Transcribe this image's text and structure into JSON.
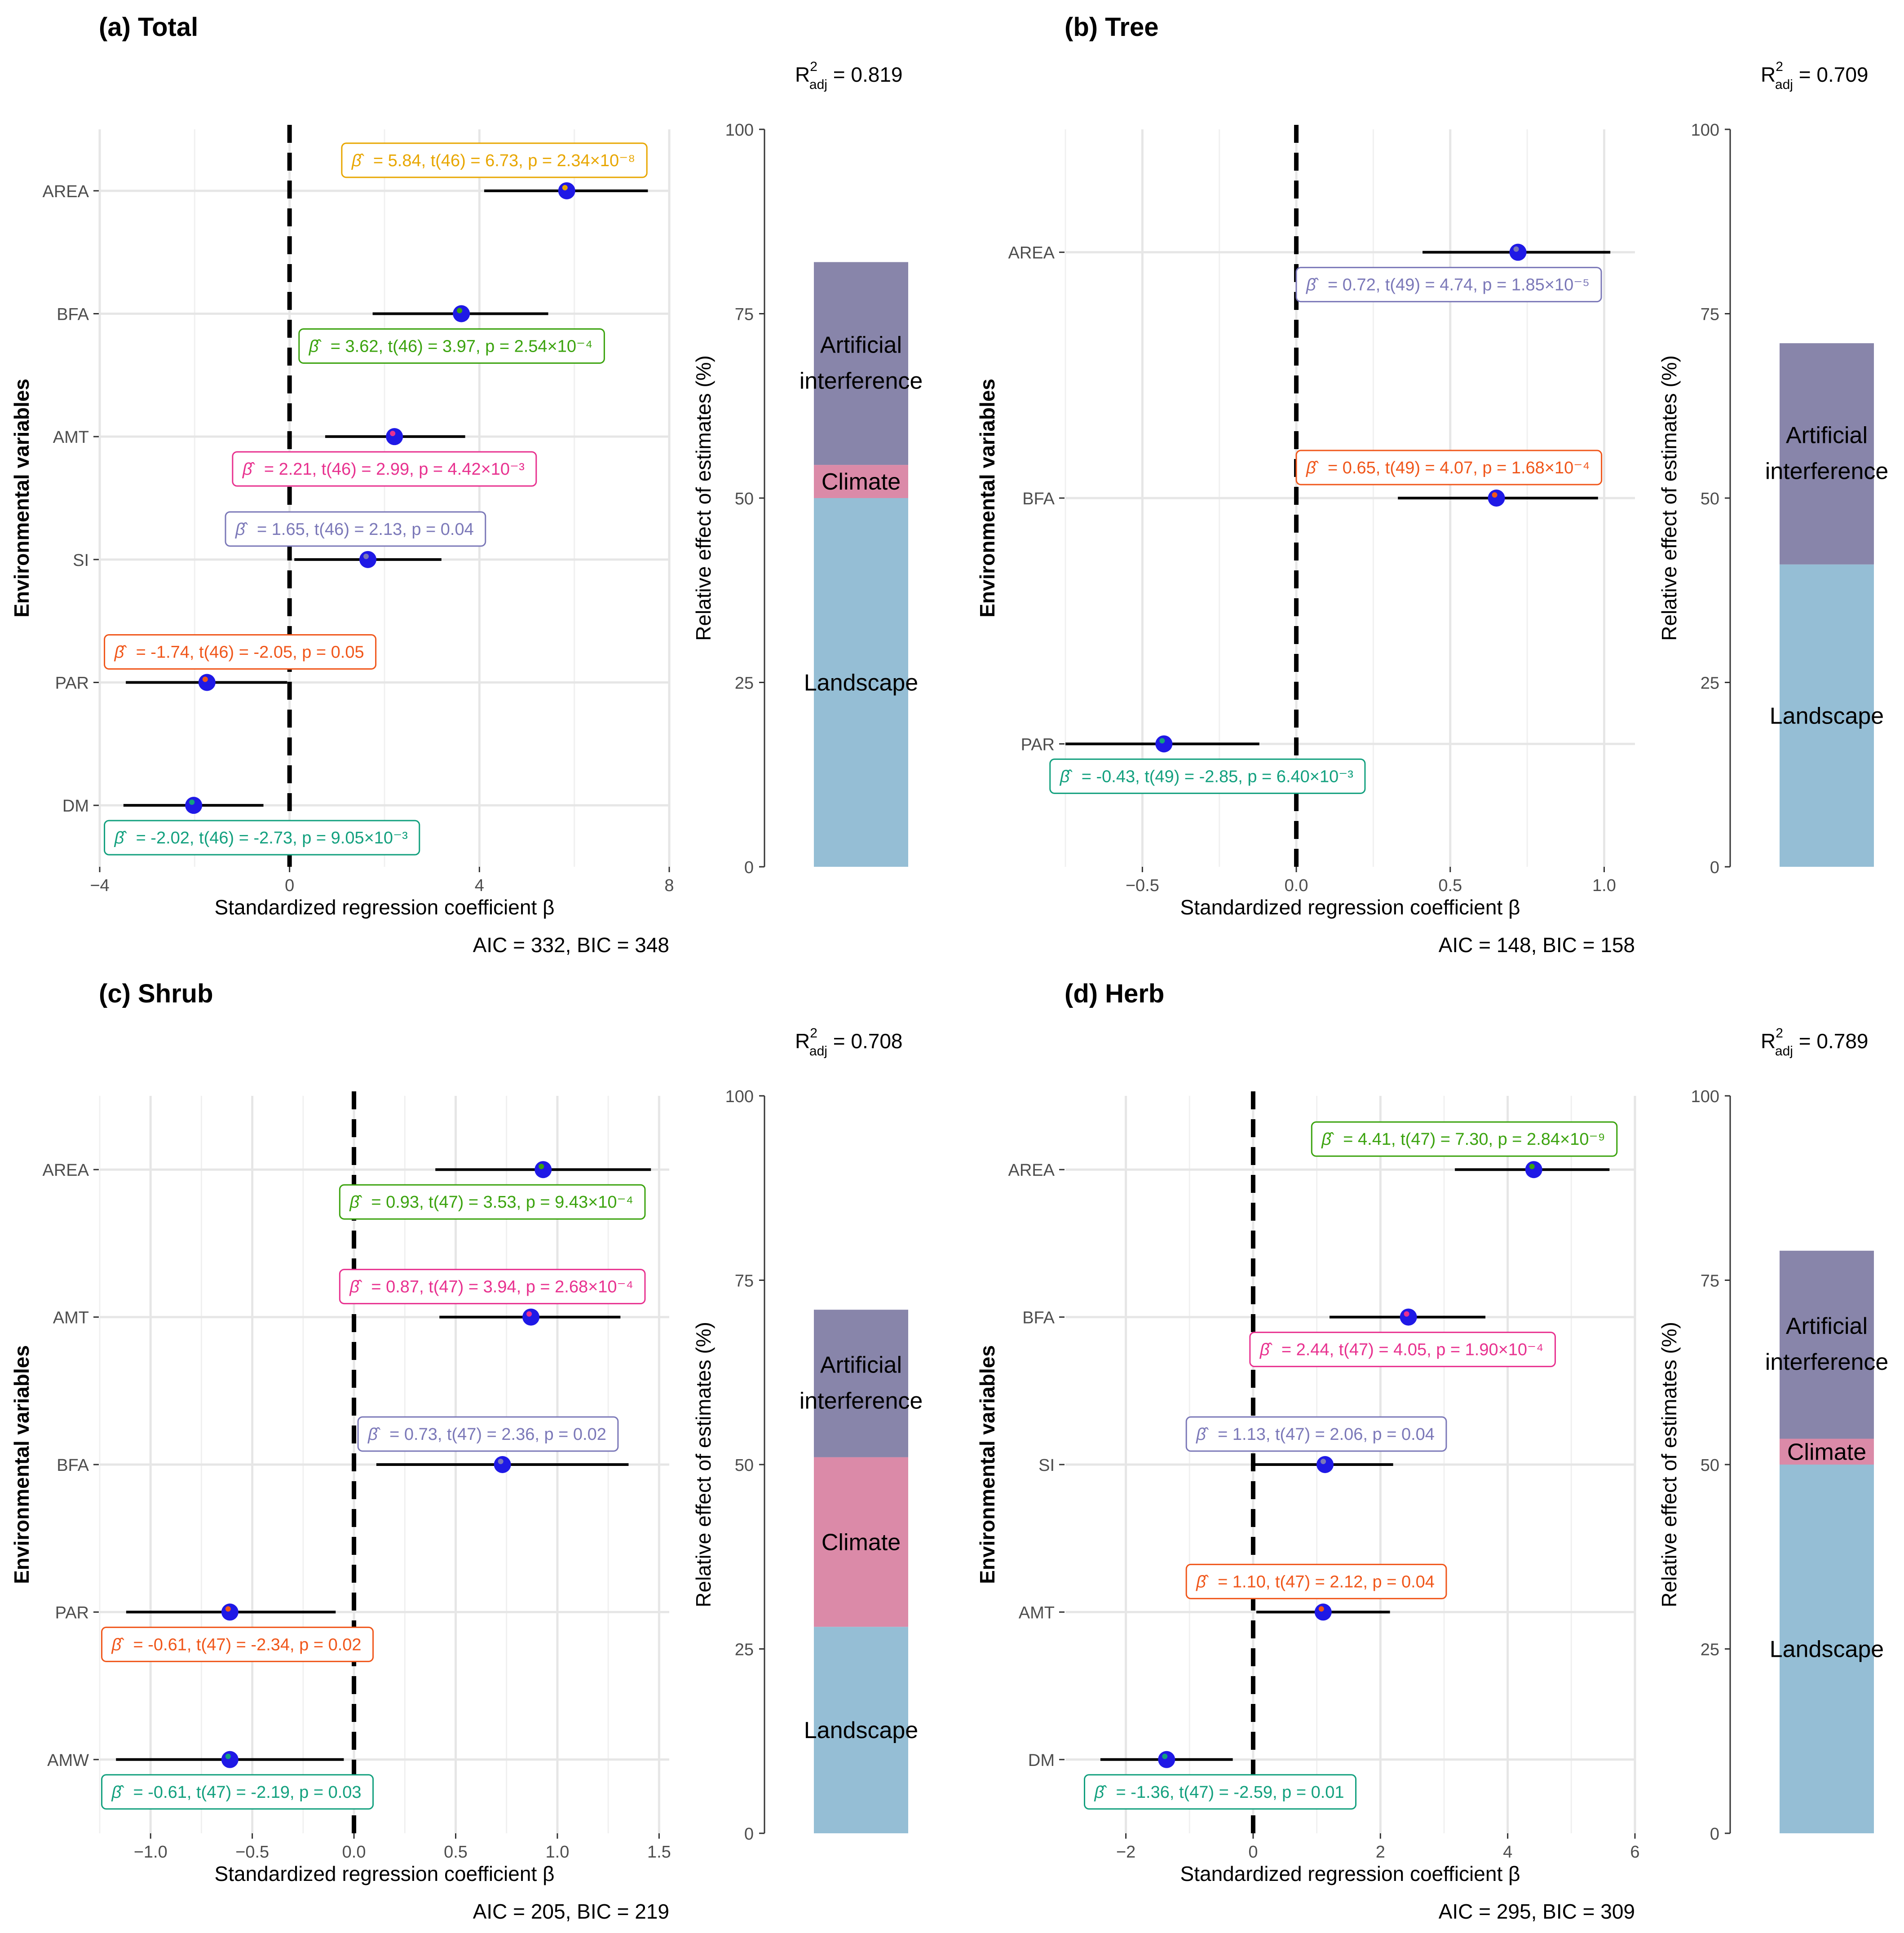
{
  "figure": {
    "y_axis_label": "Environmental variables",
    "x_axis_label": "Standardized regression coefficient β",
    "share_axis_label": "Relative effect of estimates (%)"
  },
  "colors": {
    "Landscape": "#95bed5",
    "Climate": "#db8aa8",
    "Artificial interference": "#8885aa",
    "point": "#1f19e6",
    "orange": "#f0561a",
    "green": "#3ba30e",
    "pink": "#e8318f",
    "purple": "#7b78b8",
    "teal": "#12a07e",
    "gold": "#e8a600"
  },
  "chart_data": [
    {
      "type": "forest",
      "title": "(a) Total",
      "r2_text": "0.819",
      "aic_bic": "AIC = 332, BIC = 348",
      "xlim": [
        -4,
        8
      ],
      "xticks": [
        -4,
        0,
        4,
        8
      ],
      "xtick_labels": [
        "−4",
        "0",
        "4",
        "8"
      ],
      "variables": [
        {
          "name": "AREA",
          "beta": 5.84,
          "lo": 4.1,
          "hi": 7.55,
          "ann": "= 5.84, t(46) = 6.73, p = 2.34×10⁻⁸",
          "color": "gold",
          "ann_side": "above",
          "ann_x": 1.1
        },
        {
          "name": "BFA",
          "beta": 3.62,
          "lo": 1.75,
          "hi": 5.45,
          "ann": "= 3.62, t(46) = 3.97, p = 2.54×10⁻⁴",
          "color": "green",
          "ann_side": "below",
          "ann_x": 0.2
        },
        {
          "name": "AMT",
          "beta": 2.21,
          "lo": 0.75,
          "hi": 3.7,
          "ann": "= 2.21, t(46) = 2.99, p = 4.42×10⁻³",
          "color": "pink",
          "ann_side": "below",
          "ann_x": -1.2
        },
        {
          "name": "SI",
          "beta": 1.65,
          "lo": 0.1,
          "hi": 3.2,
          "ann": "= 1.65, t(46) = 2.13, p = 0.04",
          "color": "purple",
          "ann_side": "above",
          "ann_x": -1.35
        },
        {
          "name": "PAR",
          "beta": -1.74,
          "lo": -3.45,
          "hi": -0.05,
          "ann": "= -1.74, t(46) = -2.05, p = 0.05",
          "color": "orange",
          "ann_side": "above",
          "ann_x": -3.9
        },
        {
          "name": "DM",
          "beta": -2.02,
          "lo": -3.5,
          "hi": -0.55,
          "ann": "= -2.02, t(46) = -2.73, p = 9.05×10⁻³",
          "color": "teal",
          "ann_side": "below",
          "ann_x": -3.9
        }
      ],
      "share": [
        {
          "name": "Landscape",
          "value": 50
        },
        {
          "name": "Climate",
          "value": 4.5
        },
        {
          "name": "Artificial interference",
          "value": 27.5
        }
      ]
    },
    {
      "type": "forest",
      "title": "(b) Tree",
      "r2_text": "0.709",
      "aic_bic": "AIC = 148, BIC = 158",
      "xlim": [
        -0.75,
        1.1
      ],
      "xticks": [
        -0.5,
        0,
        0.5,
        1
      ],
      "xtick_labels": [
        "−0.5",
        "0.0",
        "0.5",
        "1.0"
      ],
      "variables": [
        {
          "name": "AREA",
          "beta": 0.72,
          "lo": 0.41,
          "hi": 1.02,
          "ann": "= 0.72, t(49) = 4.74, p = 1.85×10⁻⁵",
          "color": "purple",
          "ann_side": "below",
          "ann_x": 0.0
        },
        {
          "name": "BFA",
          "beta": 0.65,
          "lo": 0.33,
          "hi": 0.98,
          "ann": "= 0.65, t(49) = 4.07, p = 1.68×10⁻⁴",
          "color": "orange",
          "ann_side": "above",
          "ann_x": 0.0
        },
        {
          "name": "PAR",
          "beta": -0.43,
          "lo": -0.75,
          "hi": -0.12,
          "ann": "= -0.43, t(49) = -2.85, p = 6.40×10⁻³",
          "color": "teal",
          "ann_side": "below",
          "ann_x": -0.8
        }
      ],
      "share": [
        {
          "name": "Landscape",
          "value": 41
        },
        {
          "name": "Artificial interference",
          "value": 30
        }
      ]
    },
    {
      "type": "forest",
      "title": "(c) Shrub",
      "r2_text": "0.708",
      "aic_bic": "AIC = 205, BIC = 219",
      "xlim": [
        -1.25,
        1.55
      ],
      "xticks": [
        -1,
        -0.5,
        0,
        0.5,
        1,
        1.5
      ],
      "xtick_labels": [
        "−1.0",
        "−0.5",
        "0.0",
        "0.5",
        "1.0",
        "1.5"
      ],
      "variables": [
        {
          "name": "AREA",
          "beta": 0.93,
          "lo": 0.4,
          "hi": 1.46,
          "ann": "= 0.93, t(47) = 3.53, p = 9.43×10⁻⁴",
          "color": "green",
          "ann_side": "below",
          "ann_x": -0.07
        },
        {
          "name": "AMT",
          "beta": 0.87,
          "lo": 0.42,
          "hi": 1.31,
          "ann": "= 0.87, t(47) = 3.94, p = 2.68×10⁻⁴",
          "color": "pink",
          "ann_side": "above",
          "ann_x": -0.07
        },
        {
          "name": "BFA",
          "beta": 0.73,
          "lo": 0.11,
          "hi": 1.35,
          "ann": "= 0.73, t(47) = 2.36, p = 0.02",
          "color": "purple",
          "ann_side": "above",
          "ann_x": 0.02
        },
        {
          "name": "PAR",
          "beta": -0.61,
          "lo": -1.12,
          "hi": -0.09,
          "ann": "= -0.61, t(47) = -2.34, p = 0.02",
          "color": "orange",
          "ann_side": "below",
          "ann_x": -1.24
        },
        {
          "name": "AMW",
          "beta": -0.61,
          "lo": -1.17,
          "hi": -0.05,
          "ann": "= -0.61, t(47) = -2.19, p = 0.03",
          "color": "teal",
          "ann_side": "below",
          "ann_x": -1.24
        }
      ],
      "share": [
        {
          "name": "Landscape",
          "value": 28
        },
        {
          "name": "Climate",
          "value": 23
        },
        {
          "name": "Artificial interference",
          "value": 20
        }
      ]
    },
    {
      "type": "forest",
      "title": "(d) Herb",
      "r2_text": "0.789",
      "aic_bic": "AIC = 295, BIC = 309",
      "xlim": [
        -2.95,
        6.0
      ],
      "xticks": [
        -2,
        0,
        2,
        4,
        6
      ],
      "xtick_labels": [
        "−2",
        "0",
        "2",
        "4",
        "6"
      ],
      "variables": [
        {
          "name": "AREA",
          "beta": 4.41,
          "lo": 3.17,
          "hi": 5.6,
          "ann": "= 4.41, t(47) = 7.30, p = 2.84×10⁻⁹",
          "color": "green",
          "ann_side": "above",
          "ann_x": 0.92
        },
        {
          "name": "BFA",
          "beta": 2.44,
          "lo": 1.2,
          "hi": 3.65,
          "ann": "= 2.44, t(47) = 4.05, p = 1.90×10⁻⁴",
          "color": "pink",
          "ann_side": "below",
          "ann_x": -0.05
        },
        {
          "name": "SI",
          "beta": 1.13,
          "lo": 0.0,
          "hi": 2.2,
          "ann": "= 1.13, t(47) = 2.06, p = 0.04",
          "color": "purple",
          "ann_side": "above",
          "ann_x": -1.05
        },
        {
          "name": "AMT",
          "beta": 1.1,
          "lo": 0.05,
          "hi": 2.15,
          "ann": "= 1.10, t(47) = 2.12, p = 0.04",
          "color": "orange",
          "ann_side": "above",
          "ann_x": -1.05
        },
        {
          "name": "DM",
          "beta": -1.36,
          "lo": -2.4,
          "hi": -0.32,
          "ann": "= -1.36, t(47) = -2.59, p = 0.01",
          "color": "teal",
          "ann_side": "below",
          "ann_x": -2.65
        }
      ],
      "share": [
        {
          "name": "Landscape",
          "value": 50
        },
        {
          "name": "Climate",
          "value": 3.5
        },
        {
          "name": "Artificial interference",
          "value": 25.5
        }
      ]
    }
  ]
}
